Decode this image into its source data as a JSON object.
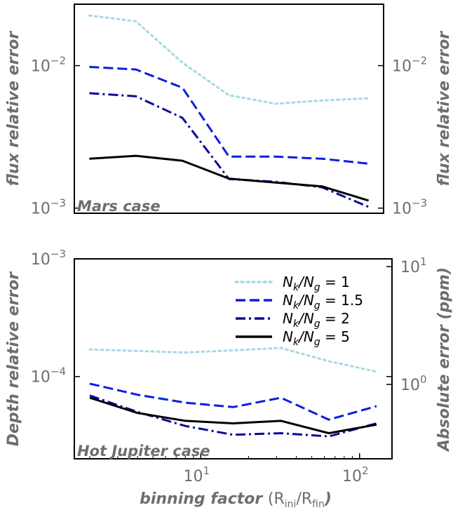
{
  "chart_data": [
    {
      "type": "line",
      "panel": "Mars case",
      "annotation": "Mars case",
      "ylabel_left": "flux relative error",
      "ylabel_right": "flux relative error",
      "yscale": "log",
      "xscale": "log",
      "xlim": [
        1.6,
        160
      ],
      "ylim": [
        0.00092,
        0.027
      ],
      "y_ticks": [
        0.001,
        0.01
      ],
      "y_tick_labels": [
        [
          "10",
          "−3"
        ],
        [
          "10",
          "−2"
        ]
      ],
      "x": [
        2,
        4,
        8,
        16,
        32,
        64,
        128
      ],
      "series": [
        {
          "name": "N_k/N_g = 1",
          "color": "#a6d8e6",
          "dash": "dotted",
          "values": [
            0.0225,
            0.0205,
            0.0105,
            0.0062,
            0.0054,
            0.0057,
            0.0059
          ]
        },
        {
          "name": "N_k/N_g = 1.5",
          "color": "#0a1fe0",
          "dash": "dashed",
          "values": [
            0.0098,
            0.0094,
            0.007,
            0.0023,
            0.0023,
            0.00222,
            0.00205
          ]
        },
        {
          "name": "N_k/N_g = 2",
          "color": "#0a0a9a",
          "dash": "dashdot",
          "values": [
            0.0064,
            0.0061,
            0.0043,
            0.0016,
            0.00153,
            0.0014,
            0.00102
          ]
        },
        {
          "name": "N_k/N_g = 5",
          "color": "#000000",
          "dash": "solid",
          "values": [
            0.00222,
            0.00233,
            0.00215,
            0.00161,
            0.00151,
            0.00142,
            0.00113
          ]
        }
      ]
    },
    {
      "type": "line",
      "panel": "Hot Jupiter case",
      "annotation": "Hot Jupiter case",
      "xlabel": "binning factor",
      "xlabel_sym": "(R",
      "xlabel_sub1": "ini",
      "xlabel_mid": "/R",
      "xlabel_sub2": "fin",
      "xlabel_end": ")",
      "ylabel_left": "Depth relative error",
      "ylabel_right": "Absolute error (ppm)",
      "yscale": "log",
      "xscale": "log",
      "xlim": [
        1.6,
        160
      ],
      "ylim": [
        2e-05,
        0.001
      ],
      "y_ticks": [
        0.0001,
        0.001
      ],
      "y_tick_labels": [
        [
          "10",
          "−4"
        ],
        [
          "10",
          "−3"
        ]
      ],
      "x_ticks": [
        10,
        100
      ],
      "x_tick_labels": [
        [
          "10",
          "1"
        ],
        [
          "10",
          "2"
        ]
      ],
      "right_ticks": [
        1,
        10
      ],
      "right_tick_labels": [
        [
          "10",
          "0"
        ],
        [
          "10",
          "1"
        ]
      ],
      "x": [
        2,
        4,
        8,
        16,
        32,
        64,
        128
      ],
      "series": [
        {
          "name": "N_k/N_g = 1",
          "color": "#a6d8e6",
          "dash": "dotted",
          "values": [
            0.00017,
            0.000165,
            0.00016,
            0.000167,
            0.000175,
            0.000135,
            0.00011
          ]
        },
        {
          "name": "N_k/N_g = 1.5",
          "color": "#0a1fe0",
          "dash": "dashed",
          "values": [
            8.7e-05,
            7e-05,
            6e-05,
            5.5e-05,
            6.6e-05,
            4.3e-05,
            5.6e-05
          ]
        },
        {
          "name": "N_k/N_g = 2",
          "color": "#0a0a9a",
          "dash": "dashdot",
          "values": [
            6.9e-05,
            5e-05,
            3.8e-05,
            3.2e-05,
            3.3e-05,
            3.1e-05,
            4e-05
          ]
        },
        {
          "name": "N_k/N_g = 5",
          "color": "#000000",
          "dash": "solid",
          "values": [
            6.6e-05,
            4.9e-05,
            4.2e-05,
            4e-05,
            4.2e-05,
            3.3e-05,
            3.9e-05
          ]
        }
      ],
      "legend": {
        "placement": "upper-right",
        "entries": [
          {
            "num": "N",
            "num_sub": "k",
            "den": "/N",
            "den_sub": "g",
            "eq": " = 1"
          },
          {
            "num": "N",
            "num_sub": "k",
            "den": "/N",
            "den_sub": "g",
            "eq": " = 1.5"
          },
          {
            "num": "N",
            "num_sub": "k",
            "den": "/N",
            "den_sub": "g",
            "eq": " = 2"
          },
          {
            "num": "N",
            "num_sub": "k",
            "den": "/N",
            "den_sub": "g",
            "eq": " = 5"
          }
        ]
      }
    }
  ]
}
